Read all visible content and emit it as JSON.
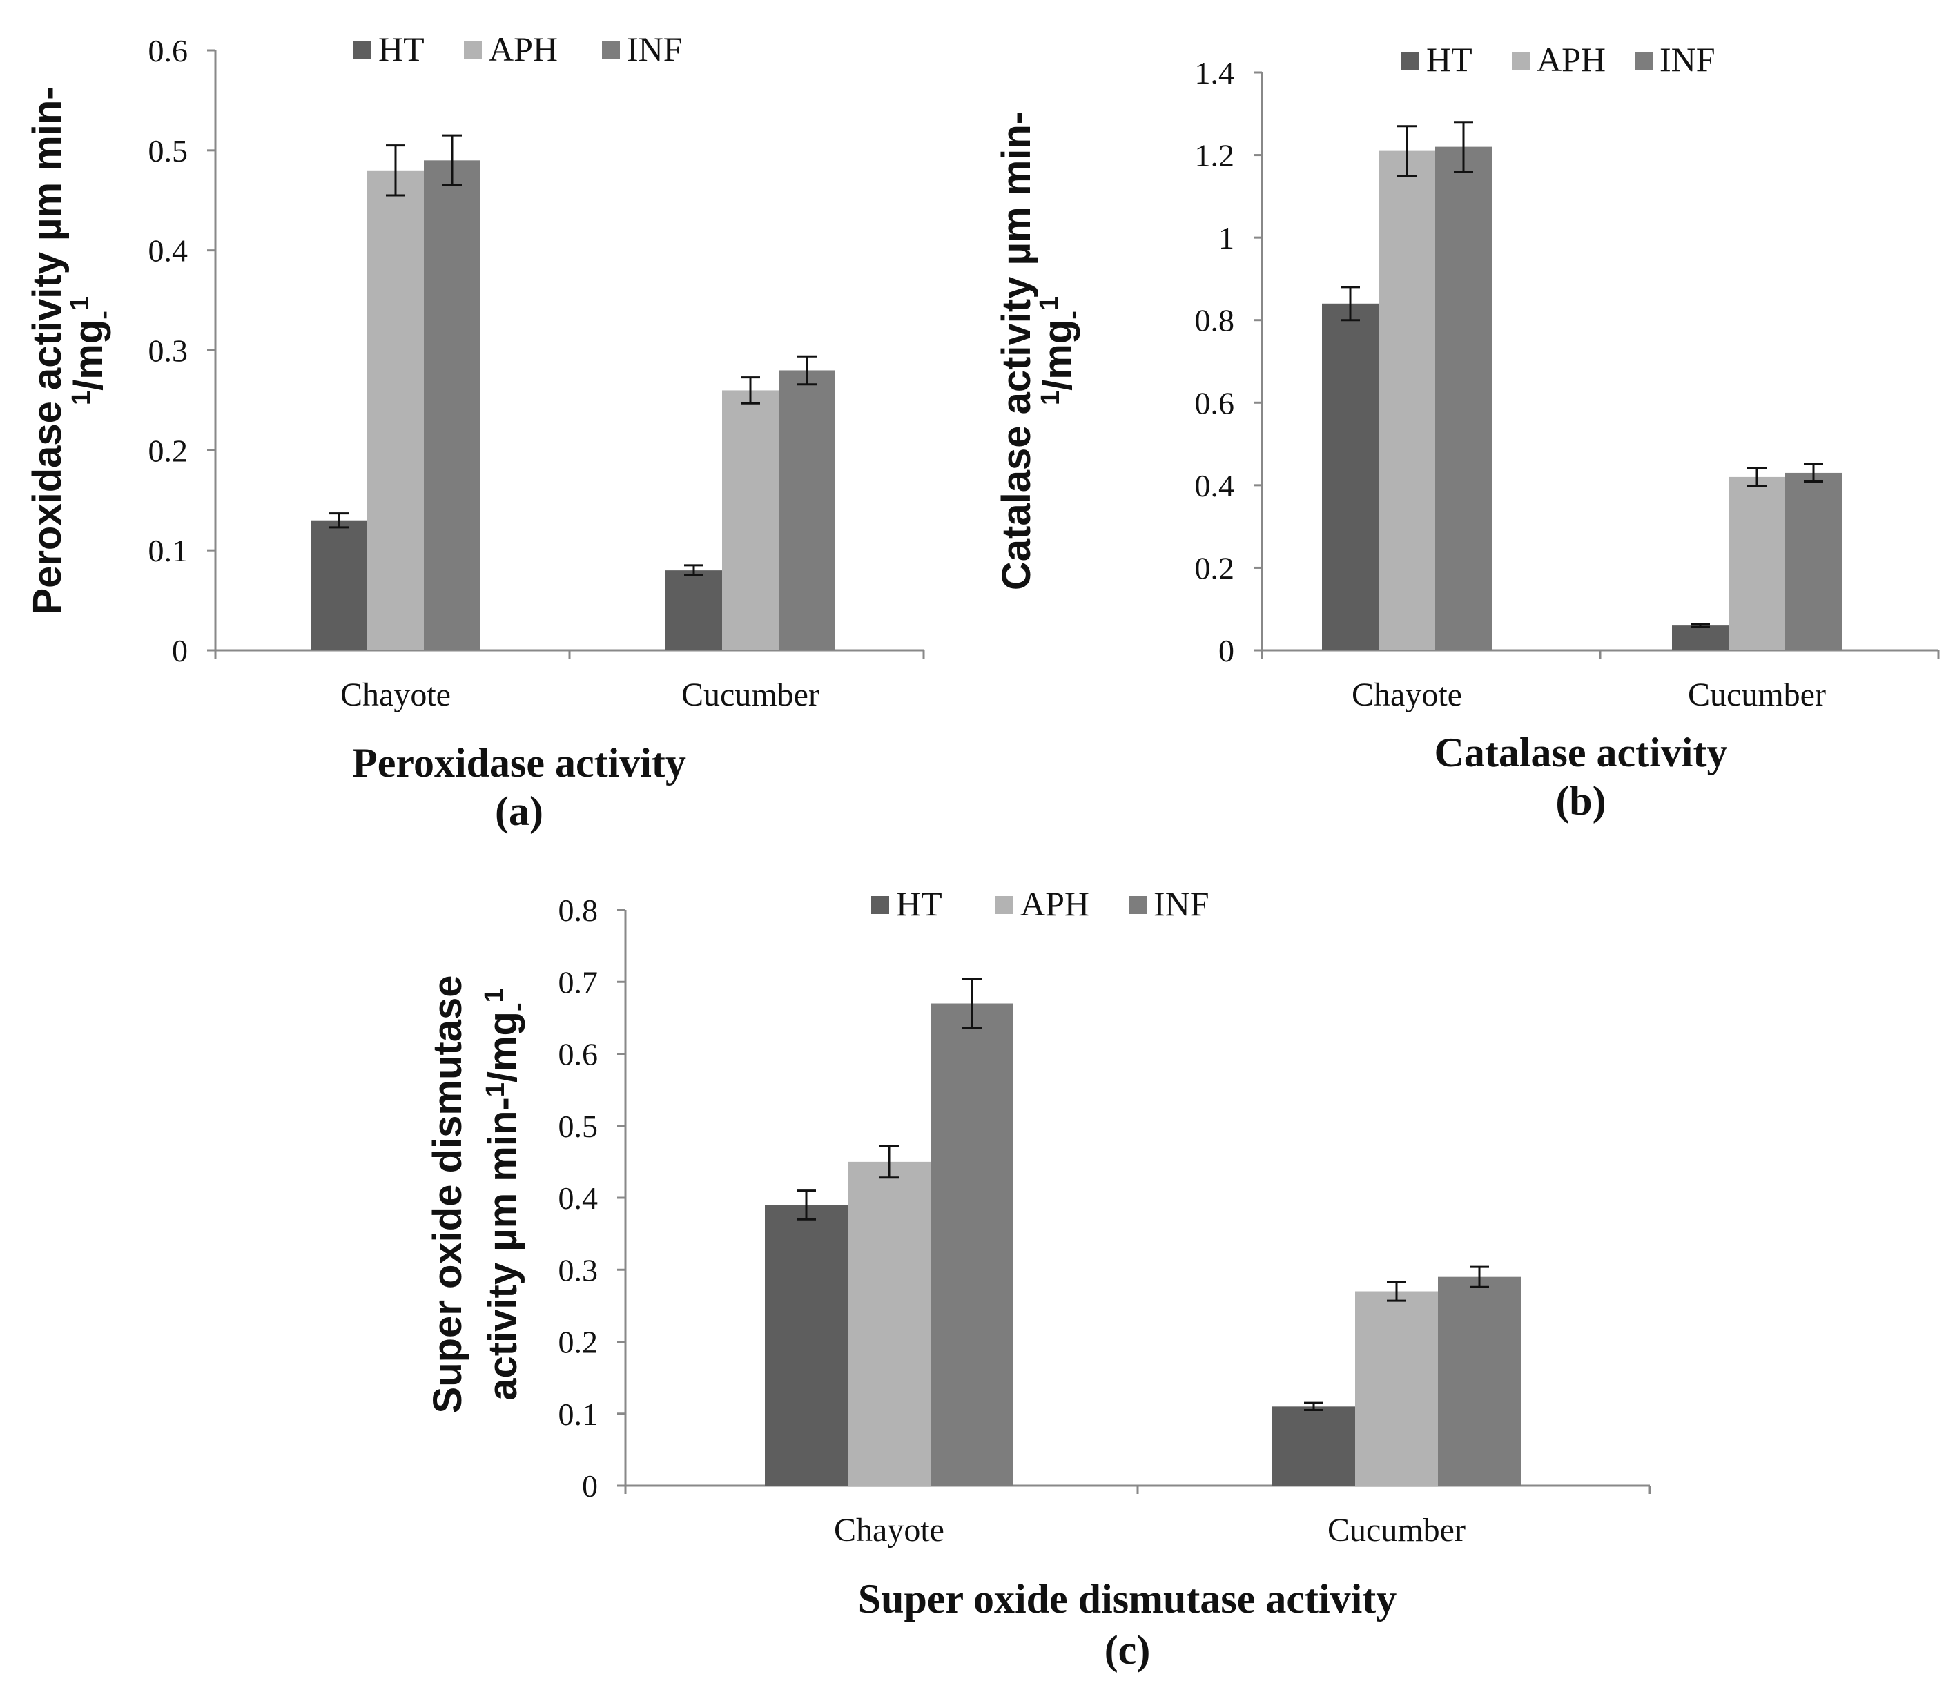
{
  "colors": {
    "HT": "#5e5e5e",
    "APH": "#b3b3b3",
    "INF": "#7d7d7d"
  },
  "chart_data": [
    {
      "type": "bar",
      "panel_label": "(a)",
      "title": "Peroxidase activity",
      "ylabel": "Peroxidase activity µm min-",
      "ylabel_line2": "/mg",
      "ylabel_line2_sup_pre": "1",
      "ylabel_line2_sub": "-",
      "ylabel_line2_sup": "1",
      "categories": [
        "Chayote",
        "Cucumber"
      ],
      "series": [
        {
          "name": "HT",
          "values": [
            0.13,
            0.08
          ],
          "errors": [
            0.007,
            0.005
          ]
        },
        {
          "name": "APH",
          "values": [
            0.48,
            0.26
          ],
          "errors": [
            0.025,
            0.013
          ]
        },
        {
          "name": "INF",
          "values": [
            0.49,
            0.28
          ],
          "errors": [
            0.025,
            0.014
          ]
        }
      ],
      "ylim": [
        0,
        0.6
      ],
      "yticks": [
        "0",
        "0.1",
        "0.2",
        "0.3",
        "0.4",
        "0.5",
        "0.6"
      ],
      "legend": "top"
    },
    {
      "type": "bar",
      "panel_label": "(b)",
      "title": "Catalase activity",
      "ylabel": "Catalase activity µm min-",
      "ylabel_line2": "/mg",
      "ylabel_line2_sup_pre": "1",
      "ylabel_line2_sub": "-",
      "ylabel_line2_sup": "1",
      "categories": [
        "Chayote",
        "Cucumber"
      ],
      "series": [
        {
          "name": "HT",
          "values": [
            0.84,
            0.06
          ],
          "errors": [
            0.04,
            0.003
          ]
        },
        {
          "name": "APH",
          "values": [
            1.21,
            0.42
          ],
          "errors": [
            0.06,
            0.021
          ]
        },
        {
          "name": "INF",
          "values": [
            1.22,
            0.43
          ],
          "errors": [
            0.06,
            0.021
          ]
        }
      ],
      "ylim": [
        0,
        1.4
      ],
      "yticks": [
        "0",
        "0.2",
        "0.4",
        "0.6",
        "0.8",
        "1",
        "1.2",
        "1.4"
      ],
      "legend": "top"
    },
    {
      "type": "bar",
      "panel_label": "(c)",
      "title": "Super oxide dismutase  activity",
      "ylabel": "Super oxide dismutase",
      "ylabel_line2": "activity µm min-",
      "ylabel_line2_sup_pre": "1",
      "ylabel_line2_mid": "/mg",
      "ylabel_line2_sub": "-",
      "ylabel_line2_sup": "1",
      "categories": [
        "Chayote",
        "Cucumber"
      ],
      "series": [
        {
          "name": "HT",
          "values": [
            0.39,
            0.11
          ],
          "errors": [
            0.02,
            0.005
          ]
        },
        {
          "name": "APH",
          "values": [
            0.45,
            0.27
          ],
          "errors": [
            0.022,
            0.013
          ]
        },
        {
          "name": "INF",
          "values": [
            0.67,
            0.29
          ],
          "errors": [
            0.034,
            0.014
          ]
        }
      ],
      "ylim": [
        0,
        0.8
      ],
      "yticks": [
        "0",
        "0.1",
        "0.2",
        "0.3",
        "0.4",
        "0.5",
        "0.6",
        "0.7",
        "0.8"
      ],
      "legend": "top"
    }
  ]
}
